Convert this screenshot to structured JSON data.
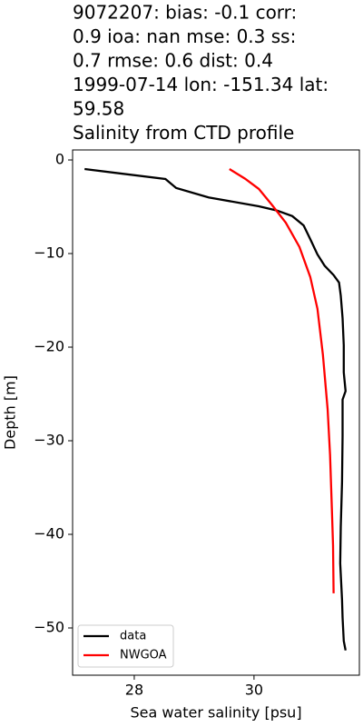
{
  "chart_data": {
    "type": "line",
    "title": [
      "9072207: bias: -0.1  corr:",
      "0.9  ioa: nan  mse: 0.3  ss:",
      "0.7  rmse: 0.6  dist: 0.4",
      "1999-07-14 lon: -151.34 lat:",
      "59.58",
      "Salinity from CTD profile"
    ],
    "xlabel": "Sea water salinity [psu]",
    "ylabel": "Depth [m]",
    "xlim": [
      26.97,
      31.76
    ],
    "ylim": [
      -55.05,
      1.07
    ],
    "xticks": [
      28,
      30
    ],
    "yticks": [
      0,
      {
        "value": -10,
        "label": "−10"
      },
      {
        "value": -20,
        "label": "−20"
      },
      {
        "value": -30,
        "label": "−30"
      },
      {
        "value": -40,
        "label": "−40"
      },
      {
        "value": -50,
        "label": "−50"
      }
    ],
    "legend": "lower left",
    "series": [
      {
        "name": "data",
        "color": "#000000",
        "x": [
          27.17,
          28.52,
          28.7,
          29.24,
          30.08,
          30.38,
          30.64,
          30.83,
          30.95,
          31.06,
          31.18,
          31.33,
          31.42,
          31.45,
          31.48,
          31.5,
          31.5,
          31.53,
          31.48,
          31.48,
          31.47,
          31.45,
          31.44,
          31.47,
          31.48,
          31.5,
          31.53
        ],
        "values": [
          -0.97,
          -2.04,
          -3.0,
          -4.0,
          -4.95,
          -5.4,
          -6.0,
          -7.0,
          -8.6,
          -10.1,
          -11.3,
          -12.3,
          -13.1,
          -14.5,
          -16.9,
          -19.8,
          -22.7,
          -24.7,
          -25.6,
          -29.5,
          -34.4,
          -39.2,
          -43.1,
          -47.0,
          -48.9,
          -51.4,
          -52.4
        ]
      },
      {
        "name": "NWGOA",
        "color": "#ff0000",
        "x": [
          29.59,
          29.85,
          30.08,
          30.3,
          30.53,
          30.76,
          30.94,
          31.06,
          31.15,
          31.23,
          31.27,
          31.3,
          31.32,
          31.33
        ],
        "values": [
          -0.97,
          -2.0,
          -3.1,
          -4.8,
          -6.7,
          -9.3,
          -12.5,
          -15.9,
          -20.8,
          -26.6,
          -31.5,
          -37.3,
          -41.2,
          -46.3
        ]
      }
    ]
  }
}
